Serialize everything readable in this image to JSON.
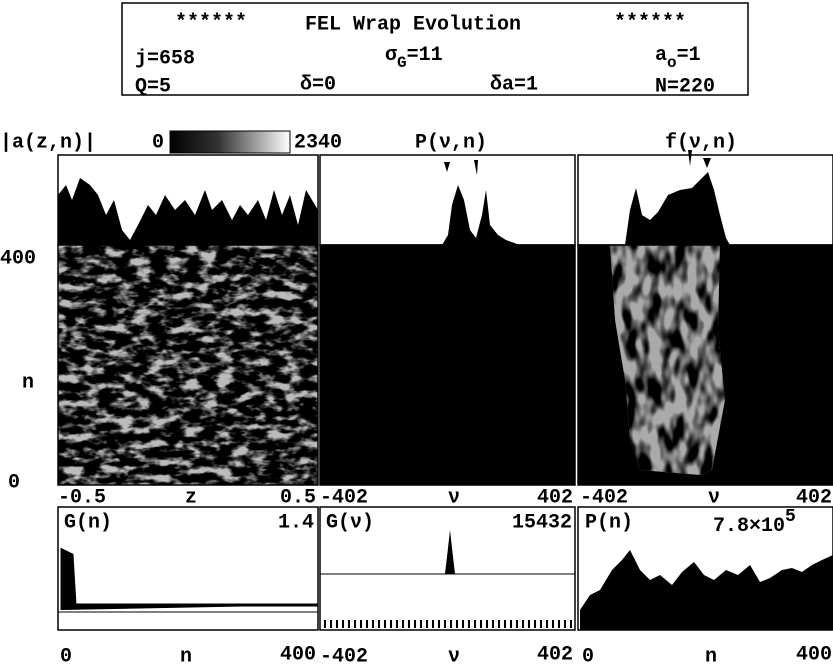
{
  "header": {
    "stars_left": "******",
    "title": "FEL Wrap Evolution",
    "stars_right": "******",
    "j": "j=658",
    "sigma": {
      "base": "σ",
      "sub": "G",
      "rest": "=11"
    },
    "a0": {
      "base": "a",
      "sub": "o",
      "rest": "=1"
    },
    "Q": "Q=5",
    "delta": "δ=0",
    "delta_a": "δa=1",
    "N": "N=220"
  },
  "top": {
    "amp_label": "|a(z,n)|",
    "scale_min": 0,
    "scale_max": 2340,
    "p_label": "P(ν,n)",
    "f_label": "f(ν,n)"
  },
  "y_axis": {
    "top": 400,
    "label": "n",
    "bottom": 0
  },
  "x_axes": [
    {
      "min": -0.5,
      "label": "z",
      "max": 0.5
    },
    {
      "min": -402,
      "label": "ν",
      "max": 402
    },
    {
      "min": -402,
      "label": "ν",
      "max": 402
    }
  ],
  "lower": [
    {
      "label": "G(n)",
      "max": 1.4
    },
    {
      "label": "G(ν)",
      "max": 15432
    },
    {
      "label": "P(n)",
      "max": {
        "base": "7.8×10",
        "sup": "5"
      }
    }
  ],
  "lower_x_axes": [
    {
      "min": 0,
      "label": "n",
      "max": 400
    },
    {
      "min": -402,
      "label": "ν",
      "max": 402
    },
    {
      "min": 0,
      "label": "n",
      "max": 400
    }
  ]
}
